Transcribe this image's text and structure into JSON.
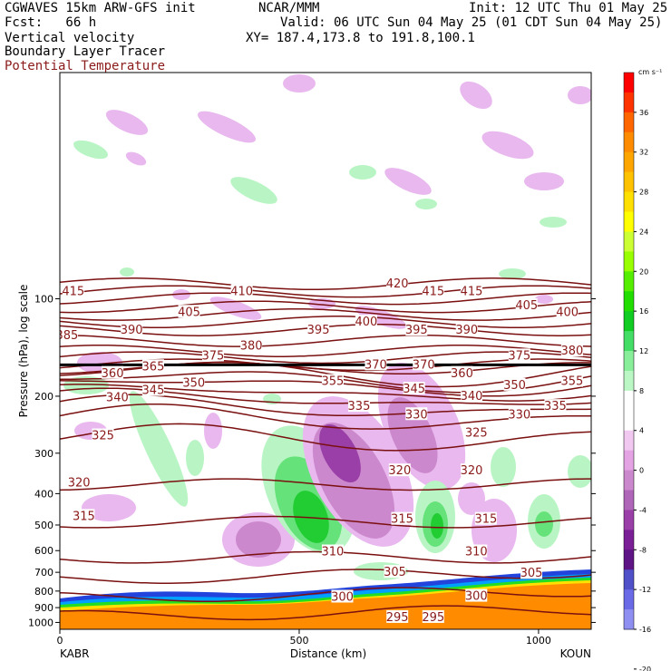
{
  "header": {
    "line1_left": "CGWAVES 15km ARW-GFS init",
    "line1_mid": "NCAR/MMM",
    "line1_right": "Init: 12 UTC Thu 01 May 25",
    "line2_left": "Fcst:   66 h",
    "line2_right": "Valid: 06 UTC Sun 04 May 25 (01 CDT Sun 04 May 25)",
    "line3_left": "Vertical velocity",
    "line3_right": "XY= 187.4,173.8 to 191.8,100.1",
    "line4_left": "Boundary Layer Tracer",
    "line5_left": "Potential Temperature"
  },
  "chart_data": {
    "type": "cross-section",
    "xlabel": "Distance (km)",
    "ylabel": "Pressure (hPa), log scale",
    "x_ticks": [
      "0",
      "500",
      "1000"
    ],
    "xlim": [
      0,
      1110
    ],
    "y_ticks": [
      "100",
      "200",
      "300",
      "400",
      "500",
      "600",
      "700",
      "800",
      "900",
      "1000"
    ],
    "ylim": [
      1050,
      20
    ],
    "left_endpoint": "KABR",
    "right_endpoint": "KOUN",
    "colorbar": {
      "unit": "cm s⁻¹",
      "levels": [
        "36",
        "32",
        "28",
        "24",
        "20",
        "16",
        "12",
        "8",
        "4",
        "0",
        "-4",
        "-8",
        "-12",
        "-16",
        "-20"
      ],
      "colors": [
        "#ff0000",
        "#ff3300",
        "#ff6600",
        "#ff8c00",
        "#ffa500",
        "#ffc200",
        "#ffe000",
        "#ffff00",
        "#ccff33",
        "#99ff00",
        "#55ee00",
        "#22dd00",
        "#11cc22",
        "#44dd66",
        "#88ee99",
        "#bbf7c4",
        "#ffffff",
        "#ffffff",
        "#f0c8f0",
        "#e4a4e4",
        "#cc88cc",
        "#b066b8",
        "#9a3fa8",
        "#7a1f96",
        "#5e1485",
        "#5050c8",
        "#6a6ae6",
        "#8f8ff2"
      ]
    },
    "isentrope_labels": [
      {
        "text": "415",
        "x": 28,
        "p": 95
      },
      {
        "text": "410",
        "x": 380,
        "p": 95
      },
      {
        "text": "420",
        "x": 705,
        "p": 90
      },
      {
        "text": "415",
        "x": 780,
        "p": 95
      },
      {
        "text": "415",
        "x": 860,
        "p": 95
      },
      {
        "text": "405",
        "x": 270,
        "p": 110
      },
      {
        "text": "405",
        "x": 975,
        "p": 105
      },
      {
        "text": "400",
        "x": 640,
        "p": 118
      },
      {
        "text": "400",
        "x": 1060,
        "p": 110
      },
      {
        "text": "385",
        "x": 15,
        "p": 130
      },
      {
        "text": "390",
        "x": 150,
        "p": 125
      },
      {
        "text": "395",
        "x": 540,
        "p": 125
      },
      {
        "text": "395",
        "x": 745,
        "p": 125
      },
      {
        "text": "390",
        "x": 850,
        "p": 125
      },
      {
        "text": "380",
        "x": 400,
        "p": 140
      },
      {
        "text": "375",
        "x": 320,
        "p": 150
      },
      {
        "text": "380",
        "x": 1070,
        "p": 145
      },
      {
        "text": "375",
        "x": 960,
        "p": 150
      },
      {
        "text": "370",
        "x": 660,
        "p": 160
      },
      {
        "text": "370",
        "x": 760,
        "p": 160
      },
      {
        "text": "360",
        "x": 110,
        "p": 170
      },
      {
        "text": "365",
        "x": 195,
        "p": 162
      },
      {
        "text": "360",
        "x": 840,
        "p": 170
      },
      {
        "text": "355",
        "x": 570,
        "p": 180
      },
      {
        "text": "355",
        "x": 1070,
        "p": 180
      },
      {
        "text": "350",
        "x": 280,
        "p": 182
      },
      {
        "text": "350",
        "x": 950,
        "p": 185
      },
      {
        "text": "345",
        "x": 195,
        "p": 192
      },
      {
        "text": "345",
        "x": 740,
        "p": 190
      },
      {
        "text": "340",
        "x": 120,
        "p": 202
      },
      {
        "text": "340",
        "x": 860,
        "p": 200
      },
      {
        "text": "335",
        "x": 625,
        "p": 215
      },
      {
        "text": "335",
        "x": 1035,
        "p": 215
      },
      {
        "text": "330",
        "x": 745,
        "p": 228
      },
      {
        "text": "330",
        "x": 960,
        "p": 228
      },
      {
        "text": "325",
        "x": 90,
        "p": 265
      },
      {
        "text": "325",
        "x": 870,
        "p": 260
      },
      {
        "text": "320",
        "x": 40,
        "p": 370
      },
      {
        "text": "320",
        "x": 710,
        "p": 340
      },
      {
        "text": "320",
        "x": 860,
        "p": 340
      },
      {
        "text": "315",
        "x": 50,
        "p": 470
      },
      {
        "text": "315",
        "x": 715,
        "p": 480
      },
      {
        "text": "315",
        "x": 890,
        "p": 480
      },
      {
        "text": "310",
        "x": 570,
        "p": 605
      },
      {
        "text": "310",
        "x": 870,
        "p": 605
      },
      {
        "text": "305",
        "x": 700,
        "p": 700
      },
      {
        "text": "305",
        "x": 985,
        "p": 705
      },
      {
        "text": "300",
        "x": 590,
        "p": 835
      },
      {
        "text": "300",
        "x": 870,
        "p": 830
      },
      {
        "text": "295",
        "x": 705,
        "p": 965
      },
      {
        "text": "295",
        "x": 780,
        "p": 965
      }
    ],
    "isentrope_levels": [
      295,
      300,
      305,
      310,
      315,
      320,
      325,
      330,
      335,
      340,
      345,
      350,
      355,
      360,
      365,
      370,
      375,
      380,
      385,
      390,
      395,
      400,
      405,
      410,
      415,
      420
    ],
    "tropopause_pressure": 160
  }
}
